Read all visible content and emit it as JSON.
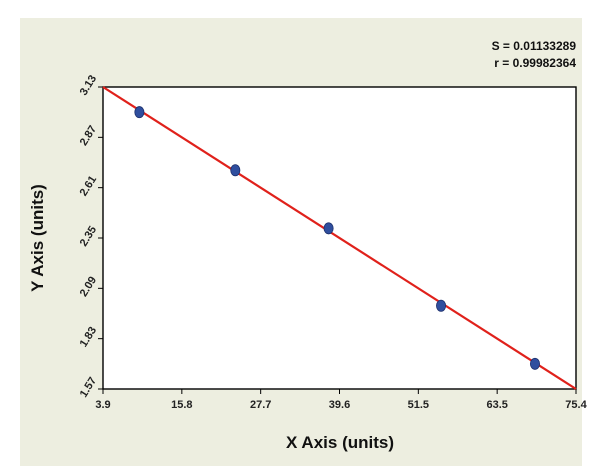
{
  "chart_data": {
    "type": "scatter",
    "title": "",
    "xlabel": "X Axis (units)",
    "ylabel": "Y Axis (units)",
    "xlim": [
      3.9,
      75.4
    ],
    "ylim": [
      1.57,
      3.13
    ],
    "x_ticks": [
      "3.9",
      "15.8",
      "27.7",
      "39.6",
      "51.5",
      "63.5",
      "75.4"
    ],
    "y_ticks": [
      "1.57",
      "1.83",
      "2.09",
      "2.35",
      "2.61",
      "2.87",
      "3.13"
    ],
    "grid": true,
    "annotations": [
      "S = 0.01133289",
      "r = 0.99982364"
    ],
    "series": [
      {
        "points": [
          {
            "x": 9.4,
            "y": 3.0
          },
          {
            "x": 23.9,
            "y": 2.7
          },
          {
            "x": 38.0,
            "y": 2.4
          },
          {
            "x": 55.0,
            "y": 2.0
          },
          {
            "x": 69.2,
            "y": 1.7
          }
        ],
        "color": "#2f4e9e"
      }
    ],
    "fit_line": {
      "x": [
        3.9,
        75.4
      ],
      "y": [
        3.13,
        1.57
      ],
      "color": "#e0211b"
    },
    "colors": {
      "background": "#edeee0",
      "plot_area": "#ffffff",
      "grid": "#a8a8a8"
    }
  }
}
